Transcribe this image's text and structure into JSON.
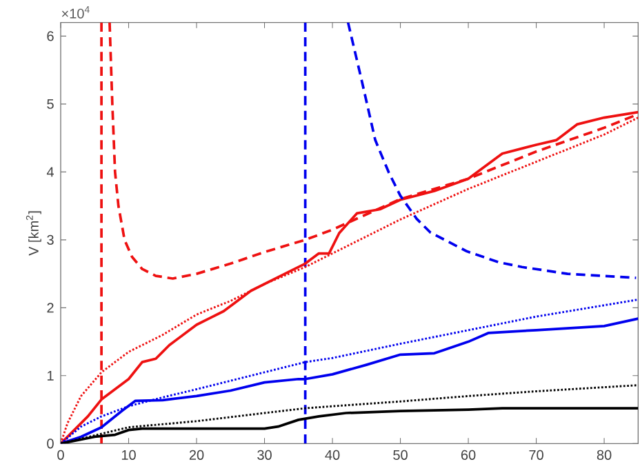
{
  "chart_data": {
    "type": "line",
    "ylabel": "V [km$^{2}$]",
    "annotations": [
      "×10$^{4}$"
    ],
    "xlim": [
      0,
      85
    ],
    "ylim": [
      0,
      6.2
    ],
    "xticks": [
      0,
      10,
      20,
      30,
      40,
      50,
      60,
      70,
      80
    ],
    "yticks": [
      0,
      1,
      2,
      3,
      4,
      5,
      6
    ],
    "marker": "none",
    "series": [
      {
        "color": "#ee1111",
        "line_style": "solid",
        "x": [
          0,
          2,
          4,
          6,
          8,
          10,
          12,
          14,
          16,
          18,
          20,
          22,
          24,
          26,
          28,
          30,
          32,
          34,
          36,
          38,
          39.5,
          41,
          43.6,
          47,
          50,
          55,
          60,
          65,
          70,
          73,
          76,
          80,
          85
        ],
        "values": [
          0,
          0.2,
          0.4,
          0.65,
          0.8,
          0.95,
          1.2,
          1.25,
          1.45,
          1.6,
          1.75,
          1.85,
          1.95,
          2.1,
          2.25,
          2.35,
          2.45,
          2.55,
          2.65,
          2.8,
          2.8,
          3.1,
          3.39,
          3.45,
          3.59,
          3.72,
          3.9,
          4.27,
          4.4,
          4.47,
          4.7,
          4.8,
          4.88
        ]
      },
      {
        "color": "#ee1111",
        "line_style": "dotted",
        "x": [
          0,
          1,
          3,
          6,
          10,
          15,
          20,
          25,
          30,
          36,
          40,
          50,
          60,
          70,
          80,
          85
        ],
        "values": [
          0,
          0.3,
          0.7,
          1.05,
          1.35,
          1.6,
          1.9,
          2.1,
          2.35,
          2.6,
          2.8,
          3.3,
          3.75,
          4.15,
          4.55,
          4.8
        ]
      },
      {
        "color": "#ee1111",
        "line_style": "dashed",
        "x": [
          7.2,
          7.6,
          8,
          8.5,
          9.4,
          10.5,
          12,
          14,
          16.5,
          20,
          25,
          30,
          36,
          40,
          50,
          60,
          70,
          80,
          85
        ],
        "values": [
          6.2,
          5.0,
          4.0,
          3.5,
          3.0,
          2.75,
          2.57,
          2.47,
          2.43,
          2.5,
          2.65,
          2.82,
          3.0,
          3.15,
          3.6,
          3.9,
          4.3,
          4.65,
          4.85
        ]
      },
      {
        "color": "#0000ee",
        "line_style": "solid",
        "x": [
          0,
          3,
          6,
          9,
          11,
          15,
          20,
          25,
          30,
          35,
          36,
          40,
          45,
          50,
          55,
          60,
          63,
          70,
          80,
          85
        ],
        "values": [
          0,
          0.1,
          0.24,
          0.48,
          0.63,
          0.64,
          0.7,
          0.78,
          0.9,
          0.95,
          0.95,
          1.02,
          1.16,
          1.31,
          1.33,
          1.5,
          1.63,
          1.67,
          1.73,
          1.84
        ]
      },
      {
        "color": "#0000ee",
        "line_style": "dotted",
        "x": [
          0,
          3,
          6,
          10,
          15,
          20,
          30,
          36,
          40,
          50,
          60,
          70,
          85
        ],
        "values": [
          0,
          0.25,
          0.4,
          0.55,
          0.68,
          0.8,
          1.05,
          1.2,
          1.26,
          1.47,
          1.67,
          1.87,
          2.12
        ]
      },
      {
        "color": "#0000ee",
        "line_style": "dashed",
        "x": [
          42.3,
          44.3,
          46.3,
          48.3,
          50,
          52.4,
          54.4,
          59.8,
          64.5,
          67.9,
          74.6,
          84.7
        ],
        "values": [
          6.2,
          5.35,
          4.47,
          3.99,
          3.65,
          3.31,
          3.11,
          2.83,
          2.67,
          2.6,
          2.5,
          2.44
        ]
      },
      {
        "color": "#000000",
        "line_style": "solid",
        "x": [
          0,
          5,
          8,
          10,
          12,
          20,
          30,
          32,
          35,
          38,
          42,
          50,
          60,
          65,
          85
        ],
        "values": [
          0,
          0.1,
          0.13,
          0.2,
          0.22,
          0.22,
          0.22,
          0.25,
          0.35,
          0.4,
          0.45,
          0.48,
          0.5,
          0.52,
          0.52
        ]
      },
      {
        "color": "#000000",
        "line_style": "dotted",
        "x": [
          0,
          10,
          20,
          30,
          36,
          40,
          50,
          60,
          70,
          85
        ],
        "values": [
          0,
          0.24,
          0.33,
          0.45,
          0.52,
          0.55,
          0.62,
          0.7,
          0.77,
          0.86
        ]
      }
    ],
    "ref_lines": [
      {
        "axis": "x",
        "value": 6,
        "color": "#ee1111",
        "line_style": "dashed"
      },
      {
        "axis": "x",
        "value": 36,
        "color": "#0000ee",
        "line_style": "dashed"
      }
    ]
  }
}
